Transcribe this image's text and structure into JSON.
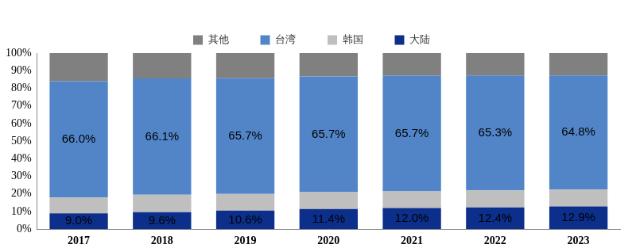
{
  "chart_data": {
    "type": "bar",
    "stacked": true,
    "grid": false,
    "legend": "top",
    "data_labels": true,
    "categories": [
      "2017",
      "2018",
      "2019",
      "2020",
      "2021",
      "2022",
      "2023"
    ],
    "ylim": [
      0,
      100
    ],
    "yticks": [
      {
        "value": 0,
        "label": "0%"
      },
      {
        "value": 10,
        "label": "10%"
      },
      {
        "value": 20,
        "label": "20%"
      },
      {
        "value": 30,
        "label": "30%"
      },
      {
        "value": 40,
        "label": "40%"
      },
      {
        "value": 50,
        "label": "50%"
      },
      {
        "value": 60,
        "label": "60%"
      },
      {
        "value": 70,
        "label": "70%"
      },
      {
        "value": 80,
        "label": "80%"
      },
      {
        "value": 90,
        "label": "90%"
      },
      {
        "value": 100,
        "label": "100%"
      }
    ],
    "series": [
      {
        "name": "大陆",
        "color": "#0b2f8a",
        "values": [
          9.0,
          9.6,
          10.6,
          11.4,
          12.0,
          12.4,
          12.9
        ],
        "value_labels": [
          "9.0%",
          "9.6%",
          "10.6%",
          "11.4%",
          "12.0%",
          "12.4%",
          "12.9%"
        ]
      },
      {
        "name": "韩国",
        "color": "#bfbfbf",
        "values": [
          9.0,
          9.9,
          9.4,
          9.6,
          9.5,
          9.6,
          9.6
        ]
      },
      {
        "name": "台湾",
        "color": "#5185c8",
        "values": [
          66.0,
          66.1,
          65.7,
          65.7,
          65.7,
          65.3,
          64.8
        ],
        "value_labels": [
          "66.0%",
          "66.1%",
          "65.7%",
          "65.7%",
          "65.7%",
          "65.3%",
          "64.8%"
        ]
      },
      {
        "name": "其他",
        "color": "#808080",
        "values": [
          16.0,
          14.4,
          14.3,
          13.3,
          12.8,
          12.7,
          12.7
        ]
      }
    ]
  }
}
